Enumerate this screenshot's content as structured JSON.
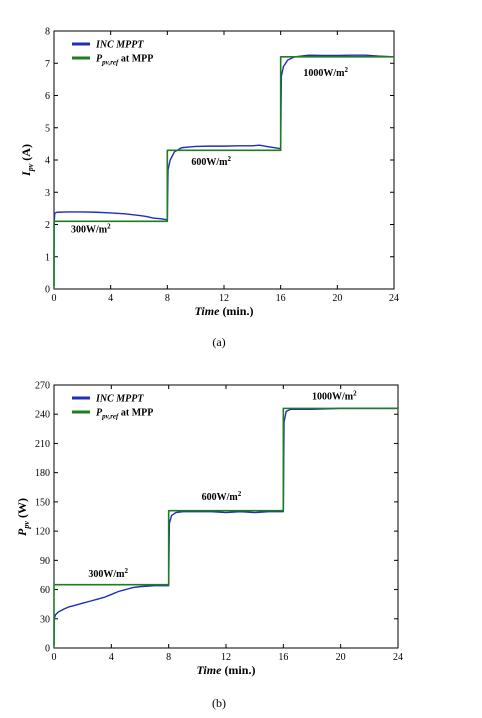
{
  "chart_data": [
    {
      "type": "line",
      "caption": "(a)",
      "xlabel_italic": "Time",
      "xlabel_unit": "(min.)",
      "ylabel_main": "I",
      "ylabel_sub": "pv",
      "ylabel_unit": "(A)",
      "xlim": [
        0,
        24
      ],
      "ylim": [
        0,
        8
      ],
      "xticks": [
        0,
        4,
        8,
        12,
        16,
        20,
        24
      ],
      "yticks": [
        0,
        1,
        2,
        3,
        4,
        5,
        6,
        7,
        8
      ],
      "legend_position": "top-left",
      "series": [
        {
          "name_main": "INC MPPT",
          "color": "#1f2fb8",
          "x": [
            0,
            0.01,
            0.05,
            0.2,
            1,
            2,
            3,
            4,
            5,
            6,
            6.5,
            7,
            7.5,
            7.95,
            8.0,
            8.05,
            8.2,
            8.5,
            9,
            9.5,
            10,
            11,
            12,
            13,
            14,
            14.5,
            15,
            16,
            16.0,
            16.05,
            16.2,
            16.5,
            17,
            18,
            19,
            20,
            21,
            22,
            23,
            24
          ],
          "y": [
            0.1,
            2.0,
            2.35,
            2.38,
            2.39,
            2.39,
            2.38,
            2.36,
            2.33,
            2.28,
            2.25,
            2.2,
            2.18,
            2.15,
            2.15,
            3.7,
            4.0,
            4.25,
            4.38,
            4.4,
            4.42,
            4.43,
            4.43,
            4.44,
            4.44,
            4.46,
            4.42,
            4.35,
            4.35,
            6.6,
            6.9,
            7.1,
            7.2,
            7.25,
            7.24,
            7.24,
            7.25,
            7.25,
            7.22,
            7.2
          ]
        },
        {
          "name_main": "P",
          "name_sub": "pv,ref",
          "name_suffix": " at MPP",
          "color": "#1e7d1e",
          "x": [
            0,
            0,
            8,
            8,
            16,
            16,
            24
          ],
          "y": [
            0,
            2.1,
            2.1,
            4.3,
            4.3,
            7.2,
            7.2
          ]
        }
      ],
      "annotations": [
        {
          "text": "300W/m",
          "sup": "2",
          "x": 1.2,
          "y": 1.75
        },
        {
          "text": "600W/m",
          "sup": "2",
          "x": 9.7,
          "y": 3.85
        },
        {
          "text": "1000W/m",
          "sup": "2",
          "x": 17.6,
          "y": 6.6
        }
      ]
    },
    {
      "type": "line",
      "caption": "(b)",
      "xlabel_italic": "Time",
      "xlabel_unit": "(min.)",
      "ylabel_main": "P",
      "ylabel_sub": "pv",
      "ylabel_unit": "(W)",
      "xlim": [
        0,
        24
      ],
      "ylim": [
        0,
        270
      ],
      "xticks": [
        0,
        4,
        8,
        12,
        16,
        20,
        24
      ],
      "yticks": [
        0,
        30,
        60,
        90,
        120,
        150,
        180,
        210,
        240,
        270
      ],
      "legend_position": "top-left",
      "series": [
        {
          "name_main": "INC MPPT",
          "color": "#1f2fb8",
          "x": [
            0,
            0.02,
            0.1,
            0.3,
            0.7,
            1,
            1.5,
            2,
            2.5,
            3,
            3.5,
            4,
            4.5,
            5,
            5.5,
            6,
            7,
            7.95,
            8.0,
            8.05,
            8.2,
            8.5,
            9,
            10,
            11,
            12,
            13,
            14,
            15,
            16,
            16.0,
            16.05,
            16.2,
            16.5,
            17,
            18,
            20,
            22,
            24
          ],
          "y": [
            3,
            30,
            34,
            37,
            40,
            42,
            44,
            46,
            48,
            50,
            52,
            55,
            58,
            60,
            62,
            63,
            64,
            64,
            64,
            128,
            136,
            139,
            140,
            140,
            140,
            139,
            140,
            139,
            140,
            140,
            140,
            232,
            243,
            245,
            245,
            245,
            246,
            246,
            246
          ]
        },
        {
          "name_main": "P",
          "name_sub": "pv,ref",
          "name_suffix": " at MPP",
          "color": "#1e7d1e",
          "x": [
            0,
            0,
            8,
            8,
            16,
            16,
            24
          ],
          "y": [
            0,
            65,
            65,
            141,
            141,
            246,
            246
          ]
        }
      ],
      "annotations": [
        {
          "text": "300W/m",
          "sup": "2",
          "x": 2.4,
          "y": 73
        },
        {
          "text": "600W/m",
          "sup": "2",
          "x": 10.3,
          "y": 152
        },
        {
          "text": "1000W/m",
          "sup": "2",
          "x": 18.0,
          "y": 255
        }
      ]
    }
  ]
}
